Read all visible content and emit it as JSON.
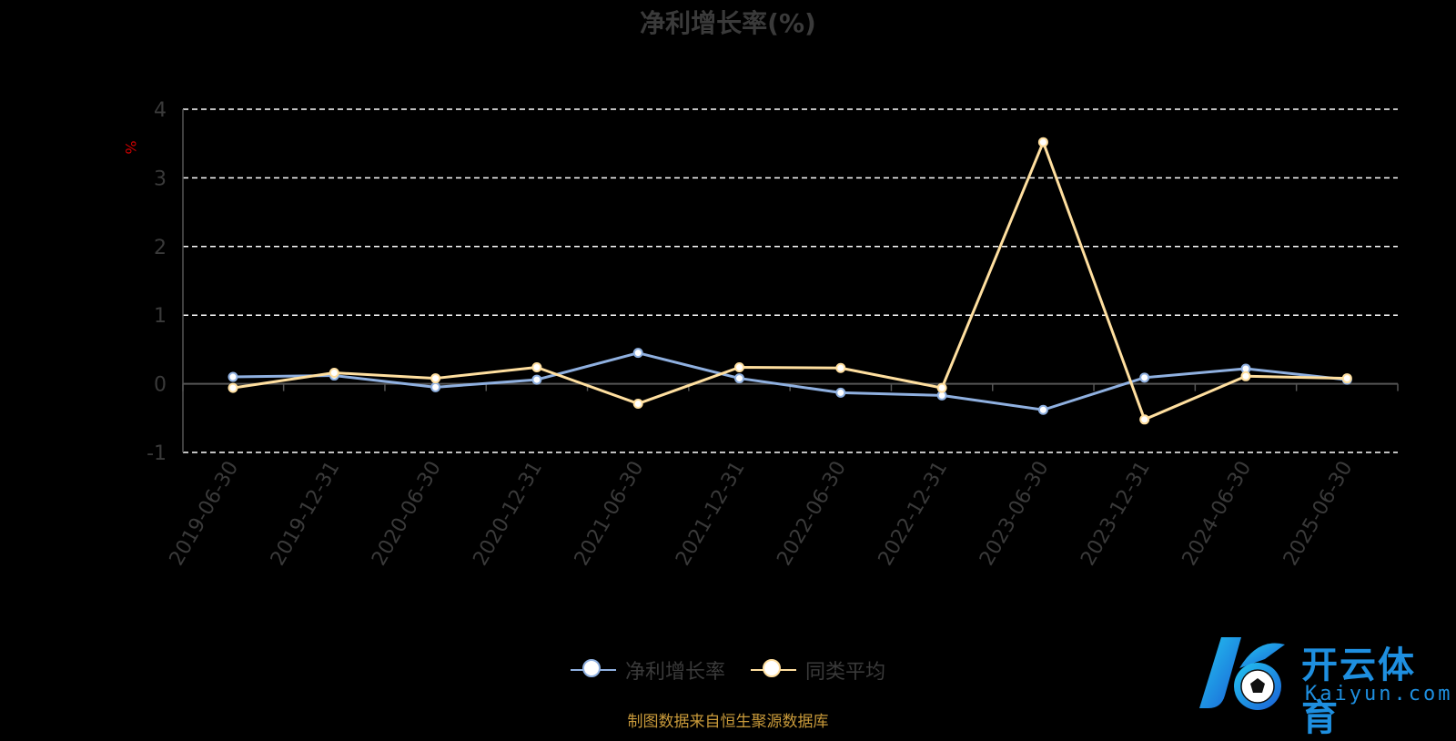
{
  "title": "净利增长率(%)",
  "source_note": "制图数据来自恒生聚源数据库",
  "logo": {
    "cn_text": "开云体育",
    "en_text": "Kaiyun.com"
  },
  "colors": {
    "background": "#000000",
    "series1": "#8fb0e0",
    "series2": "#ffdf9f",
    "grid": "#ffffff",
    "axis": "#555555",
    "text": "#3a3a3a",
    "unit": "#cc0000",
    "source": "#c99a3a",
    "logo": "#1e8fe0"
  },
  "chart_data": {
    "type": "line",
    "title": "净利增长率(%)",
    "ylabel": "%",
    "ylim": [
      -1,
      4
    ],
    "yticks": [
      -1,
      0,
      1,
      2,
      3,
      4
    ],
    "grid": true,
    "legend_position": "bottom",
    "categories": [
      "2019-06-30",
      "2019-12-31",
      "2020-06-30",
      "2020-12-31",
      "2021-06-30",
      "2021-12-31",
      "2022-06-30",
      "2022-12-31",
      "2023-06-30",
      "2023-12-31",
      "2024-06-30",
      "2025-06-30"
    ],
    "series": [
      {
        "name": "净利增长率",
        "color": "#8fb0e0",
        "values": [
          0.1,
          0.12,
          -0.05,
          0.06,
          0.45,
          0.08,
          -0.13,
          -0.17,
          -0.38,
          0.09,
          0.22,
          0.06
        ]
      },
      {
        "name": "同类平均",
        "color": "#ffdf9f",
        "values": [
          -0.06,
          0.16,
          0.08,
          0.24,
          -0.29,
          0.24,
          0.23,
          -0.06,
          3.52,
          -0.52,
          0.11,
          0.08
        ]
      }
    ]
  }
}
